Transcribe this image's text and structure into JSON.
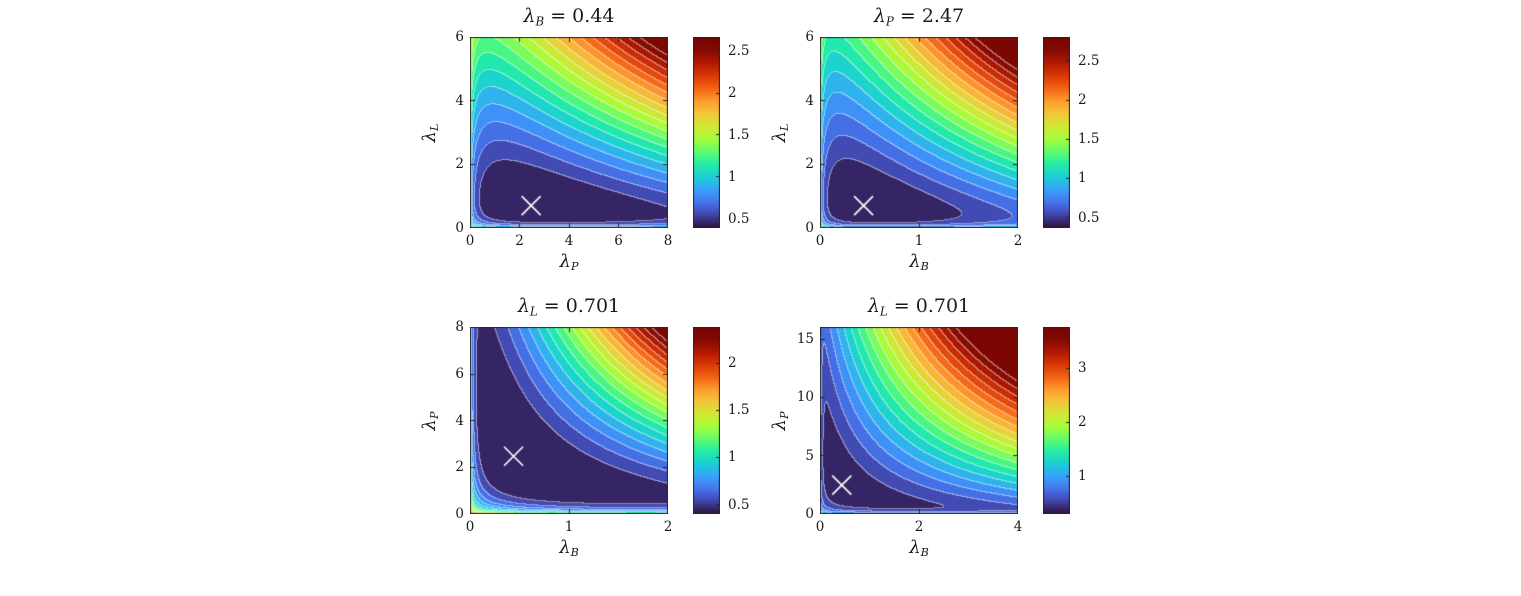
{
  "chart_data": [
    {
      "id": "top-left",
      "type": "contour",
      "title": {
        "symbol": "λ",
        "subscript": "B",
        "rest": " = 0.44"
      },
      "xlabel": {
        "symbol": "λ",
        "subscript": "P"
      },
      "ylabel": {
        "symbol": "λ",
        "subscript": "L"
      },
      "xlim": [
        0,
        8
      ],
      "ylim": [
        0,
        6
      ],
      "xticks": [
        0,
        2,
        4,
        6,
        8
      ],
      "yticks": [
        0,
        2,
        4,
        6
      ],
      "clim": [
        0.39,
        2.67
      ],
      "levels": 20,
      "colorbar_ticks": [
        0.5,
        1,
        1.5,
        2,
        2.5
      ],
      "min_point": {
        "x": 2.47,
        "y": 0.701,
        "marker": "x"
      },
      "surface": {
        "v0": 0.33,
        "cu": 0.065,
        "cx": 0.11,
        "cy": 0.16,
        "p": 1
      }
    },
    {
      "id": "top-right",
      "type": "contour",
      "title": {
        "symbol": "λ",
        "subscript": "P",
        "rest": " = 2.47"
      },
      "xlabel": {
        "symbol": "λ",
        "subscript": "B"
      },
      "ylabel": {
        "symbol": "λ",
        "subscript": "L"
      },
      "xlim": [
        0,
        2
      ],
      "ylim": [
        0,
        6
      ],
      "xticks": [
        0,
        1,
        2
      ],
      "yticks": [
        0,
        2,
        4,
        6
      ],
      "clim": [
        0.37,
        2.8
      ],
      "levels": 20,
      "colorbar_ticks": [
        0.5,
        1,
        1.5,
        2,
        2.5
      ],
      "min_point": {
        "x": 0.44,
        "y": 0.701,
        "marker": "x"
      },
      "surface": {
        "v0": 0.33,
        "cu": 0.055,
        "cx": 0.12,
        "cy": 0.14,
        "p": 1
      }
    },
    {
      "id": "bottom-left",
      "type": "contour",
      "title": {
        "symbol": "λ",
        "subscript": "L",
        "rest": " = 0.701"
      },
      "xlabel": {
        "symbol": "λ",
        "subscript": "B"
      },
      "ylabel": {
        "symbol": "λ",
        "subscript": "P"
      },
      "xlim": [
        0,
        2
      ],
      "ylim": [
        0,
        8
      ],
      "xticks": [
        0,
        1,
        2
      ],
      "yticks": [
        0,
        2,
        4,
        6,
        8
      ],
      "clim": [
        0.4,
        2.38
      ],
      "levels": 20,
      "colorbar_ticks": [
        0.5,
        1,
        1.5,
        2
      ],
      "min_point": {
        "x": 0.44,
        "y": 2.47,
        "marker": "x"
      },
      "surface": {
        "v0": 0.35,
        "cu": 0.18,
        "cx": 0.02,
        "cy": 0.1,
        "p": 1
      }
    },
    {
      "id": "bottom-right",
      "type": "contour",
      "title": {
        "symbol": "λ",
        "subscript": "L",
        "rest": " = 0.701"
      },
      "xlabel": {
        "symbol": "λ",
        "subscript": "B"
      },
      "ylabel": {
        "symbol": "λ",
        "subscript": "P"
      },
      "xlim": [
        0,
        4
      ],
      "ylim": [
        0,
        16
      ],
      "xticks": [
        0,
        2,
        4
      ],
      "yticks": [
        0,
        5,
        10,
        15
      ],
      "clim": [
        0.31,
        3.75
      ],
      "levels": 20,
      "colorbar_ticks": [
        1,
        2,
        3
      ],
      "min_point": {
        "x": 0.44,
        "y": 2.47,
        "marker": "x"
      },
      "surface": {
        "v0": 0.31,
        "cu": 0.16,
        "cx": 0.03,
        "cy": 0.1,
        "p": 0.8
      }
    }
  ],
  "style": {
    "colormap_name": "turbo",
    "colormap_stops": [
      [
        48,
        18,
        59
      ],
      [
        65,
        69,
        171
      ],
      [
        70,
        117,
        237
      ],
      [
        57,
        162,
        252
      ],
      [
        27,
        207,
        212
      ],
      [
        36,
        236,
        166
      ],
      [
        97,
        252,
        108
      ],
      [
        164,
        252,
        59
      ],
      [
        209,
        232,
        52
      ],
      [
        243,
        198,
        58
      ],
      [
        254,
        155,
        45
      ],
      [
        243,
        99,
        21
      ],
      [
        217,
        56,
        6
      ],
      [
        177,
        25,
        1
      ],
      [
        130,
        10,
        2
      ],
      [
        122,
        4,
        3
      ]
    ],
    "marker_color": "#ffffff",
    "contour_line_color_alpha": 0.45,
    "axis_color": "#262626",
    "text_color": "#1a1a1a",
    "background": "#ffffff"
  }
}
